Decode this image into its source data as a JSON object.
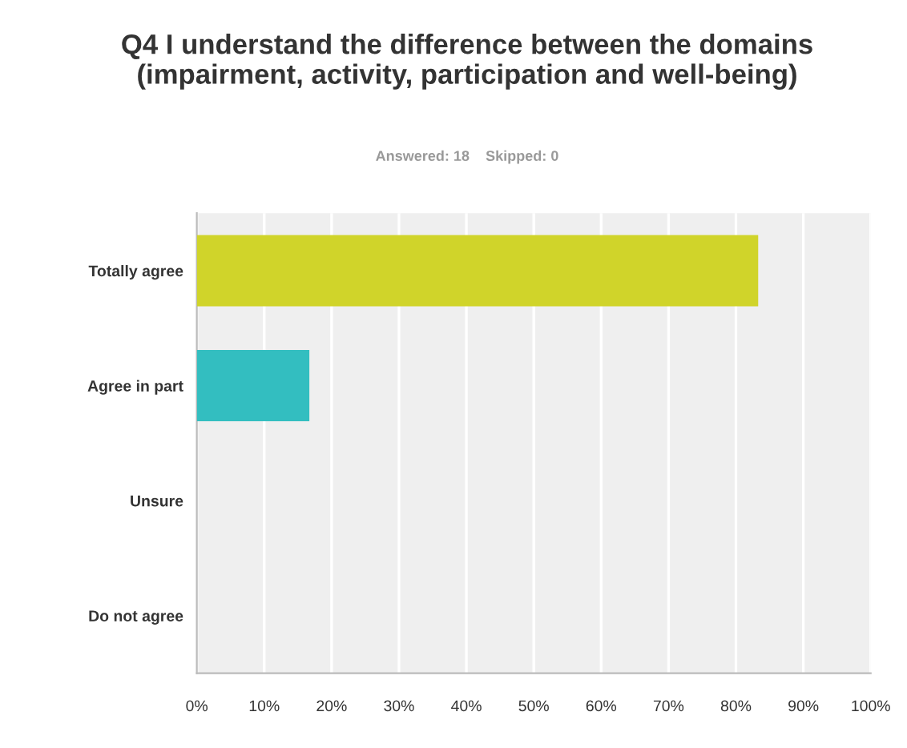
{
  "chart_data": {
    "type": "bar",
    "orientation": "horizontal",
    "title": "Q4 I understand the difference between the domains (impairment, activity, participation and well-being)",
    "subtitle": "Answered: 18    Skipped: 0",
    "categories": [
      "Totally agree",
      "Agree in part",
      "Unsure",
      "Do not agree"
    ],
    "values": [
      83.3,
      16.7,
      0,
      0
    ],
    "colors": [
      "#d0d42a",
      "#33bec0",
      "#e08a3c",
      "#8c6bb1"
    ],
    "xlim": [
      0,
      100
    ],
    "xticks": [
      {
        "value": 0,
        "label": "0%"
      },
      {
        "value": 10,
        "label": "10%"
      },
      {
        "value": 20,
        "label": "20%"
      },
      {
        "value": 30,
        "label": "30%"
      },
      {
        "value": 40,
        "label": "40%"
      },
      {
        "value": 50,
        "label": "50%"
      },
      {
        "value": 60,
        "label": "60%"
      },
      {
        "value": 70,
        "label": "70%"
      },
      {
        "value": 80,
        "label": "80%"
      },
      {
        "value": 90,
        "label": "90%"
      },
      {
        "value": 100,
        "label": "100%"
      }
    ],
    "grid": "x",
    "legend": false
  }
}
